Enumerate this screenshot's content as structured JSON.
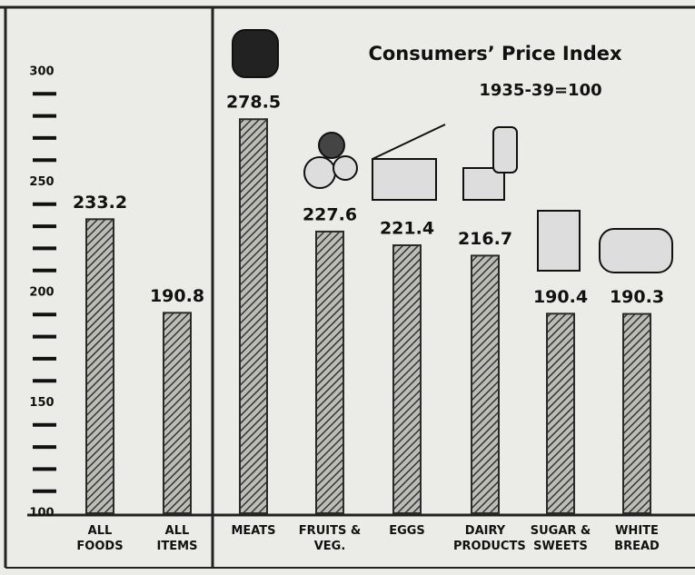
{
  "chart_data": {
    "type": "bar",
    "title": "Consumers’ Price Index",
    "subtitle": "1935-39=100",
    "categories": [
      "ALL FOODS",
      "ALL ITEMS",
      "MEATS",
      "FRUITS & VEG.",
      "EGGS",
      "DAIRY PRODUCTS",
      "SUGAR & SWEETS",
      "WHITE BREAD"
    ],
    "values": [
      233.2,
      190.8,
      278.5,
      227.6,
      221.4,
      216.7,
      190.4,
      190.3
    ],
    "color": "#2a2a2a",
    "ylim": [
      100,
      300
    ],
    "yticks": [
      100,
      150,
      200,
      250,
      300
    ],
    "minor_yticks": [
      110,
      120,
      130,
      140,
      160,
      170,
      180,
      190,
      210,
      220,
      230,
      240,
      260,
      270,
      280,
      290
    ]
  }
}
